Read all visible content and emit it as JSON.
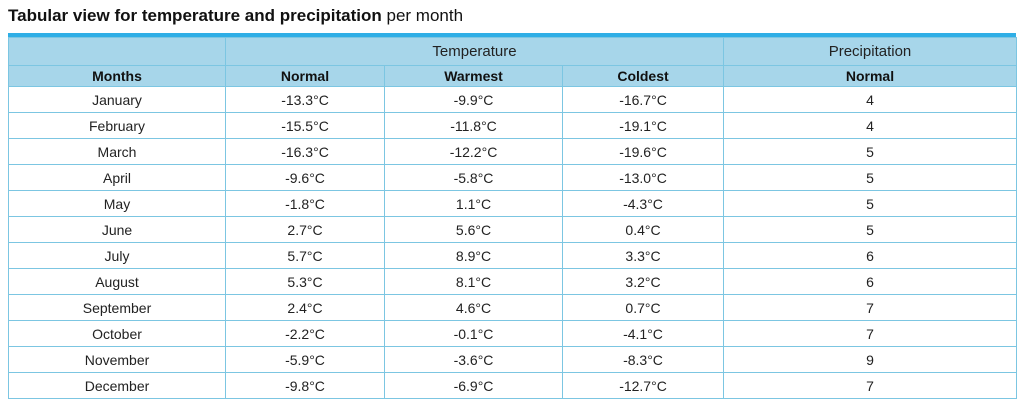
{
  "title": {
    "bold": "Tabular view for temperature and precipitation",
    "rest": " per month"
  },
  "table": {
    "group_headers": {
      "temperature": "Temperature",
      "precipitation": "Precipitation"
    },
    "column_headers": {
      "months": "Months",
      "normal": "Normal",
      "warmest": "Warmest",
      "coldest": "Coldest",
      "precip_normal": "Normal"
    },
    "rows": [
      {
        "month": "January",
        "normal": "-13.3°C",
        "warmest": "-9.9°C",
        "coldest": "-16.7°C",
        "precip": "4"
      },
      {
        "month": "February",
        "normal": "-15.5°C",
        "warmest": "-11.8°C",
        "coldest": "-19.1°C",
        "precip": "4"
      },
      {
        "month": "March",
        "normal": "-16.3°C",
        "warmest": "-12.2°C",
        "coldest": "-19.6°C",
        "precip": "5"
      },
      {
        "month": "April",
        "normal": "-9.6°C",
        "warmest": "-5.8°C",
        "coldest": "-13.0°C",
        "precip": "5"
      },
      {
        "month": "May",
        "normal": "-1.8°C",
        "warmest": "1.1°C",
        "coldest": "-4.3°C",
        "precip": "5"
      },
      {
        "month": "June",
        "normal": "2.7°C",
        "warmest": "5.6°C",
        "coldest": "0.4°C",
        "precip": "5"
      },
      {
        "month": "July",
        "normal": "5.7°C",
        "warmest": "8.9°C",
        "coldest": "3.3°C",
        "precip": "6"
      },
      {
        "month": "August",
        "normal": "5.3°C",
        "warmest": "8.1°C",
        "coldest": "3.2°C",
        "precip": "6"
      },
      {
        "month": "September",
        "normal": "2.4°C",
        "warmest": "4.6°C",
        "coldest": "0.7°C",
        "precip": "7"
      },
      {
        "month": "October",
        "normal": "-2.2°C",
        "warmest": "-0.1°C",
        "coldest": "-4.1°C",
        "precip": "7"
      },
      {
        "month": "November",
        "normal": "-5.9°C",
        "warmest": "-3.6°C",
        "coldest": "-8.3°C",
        "precip": "9"
      },
      {
        "month": "December",
        "normal": "-9.8°C",
        "warmest": "-6.9°C",
        "coldest": "-12.7°C",
        "precip": "7"
      }
    ]
  }
}
